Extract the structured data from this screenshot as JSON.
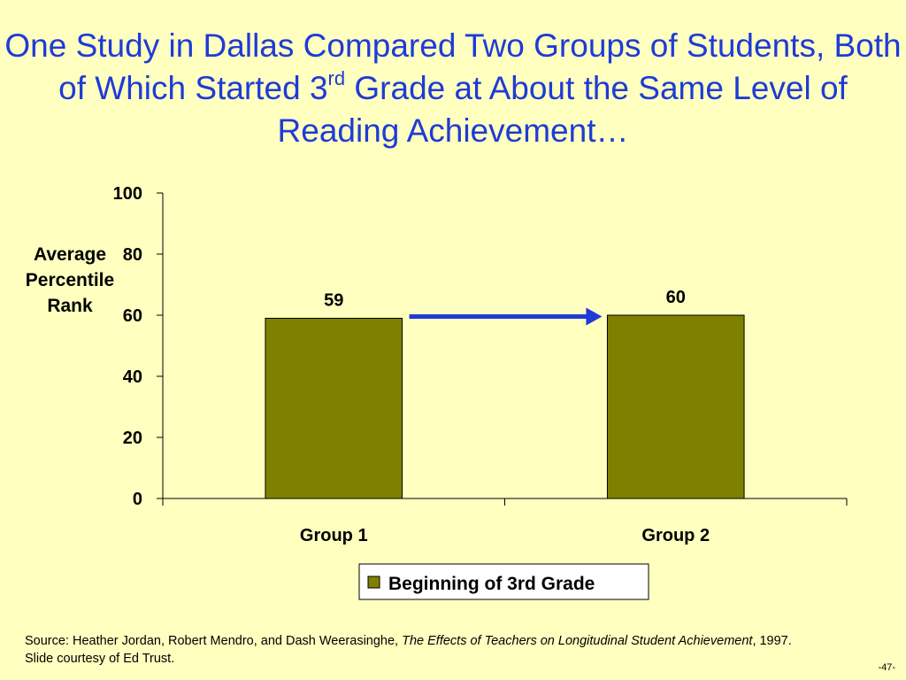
{
  "slide": {
    "title_part1": "One Study in Dallas Compared Two Groups of Students, Both of Which Started 3",
    "title_sup": "rd",
    "title_part2": " Grade at About the Same Level of Reading Achievement…",
    "source_prefix": "Source:  Heather Jordan, Robert Mendro, and Dash Weerasinghe, ",
    "source_italic": "The Effects of Teachers on Longitudinal Student Achievement",
    "source_suffix": ", 1997. Slide courtesy of Ed Trust.",
    "page_number": "-47-"
  },
  "chart_data": {
    "type": "bar",
    "categories": [
      "Group 1",
      "Group 2"
    ],
    "series": [
      {
        "name": "Beginning of 3rd Grade",
        "values": [
          59,
          60
        ],
        "color": "#808000"
      }
    ],
    "data_labels": [
      "59",
      "60"
    ],
    "ylabel": "Average Percentile Rank",
    "ylim": [
      0,
      100
    ],
    "yticks": [
      0,
      20,
      40,
      60,
      80,
      100
    ],
    "grid": false,
    "legend_position": "bottom",
    "annotation": {
      "type": "arrow",
      "from": "Group 1",
      "to": "Group 2",
      "color": "#1E3BD7"
    }
  }
}
